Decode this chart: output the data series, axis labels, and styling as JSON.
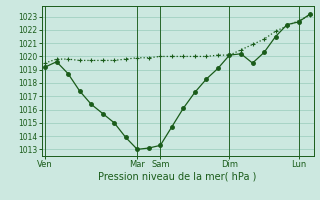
{
  "xlabel": "Pression niveau de la mer( hPa )",
  "background_color": "#cce8e0",
  "grid_color": "#99ccbb",
  "line_color": "#1a5c1a",
  "ylim": [
    1012.5,
    1023.8
  ],
  "yticks": [
    1013,
    1014,
    1015,
    1016,
    1017,
    1018,
    1019,
    1020,
    1021,
    1022,
    1023
  ],
  "day_labels": [
    "Ven",
    "Mar",
    "Sam",
    "Dim",
    "Lun"
  ],
  "day_positions": [
    0,
    8,
    10,
    16,
    22
  ],
  "xlim": [
    -0.3,
    23.3
  ],
  "series1_x": [
    0,
    1,
    2,
    3,
    4,
    5,
    6,
    7,
    8,
    9,
    10,
    11,
    12,
    13,
    14,
    15,
    16,
    17,
    18,
    19,
    20,
    21,
    22,
    23
  ],
  "series1_y": [
    1019.2,
    1019.6,
    1018.7,
    1017.4,
    1016.4,
    1015.7,
    1015.0,
    1013.9,
    1013.0,
    1013.1,
    1013.3,
    1014.7,
    1016.1,
    1017.3,
    1018.3,
    1019.1,
    1020.1,
    1020.2,
    1019.5,
    1020.3,
    1021.5,
    1022.4,
    1022.6,
    1023.2
  ],
  "series2_x": [
    0,
    1,
    2,
    3,
    4,
    5,
    6,
    7,
    8,
    9,
    10,
    11,
    12,
    13,
    14,
    15,
    16,
    17,
    18,
    19,
    20,
    21,
    22,
    23
  ],
  "series2_y": [
    1019.5,
    1019.8,
    1019.8,
    1019.7,
    1019.7,
    1019.7,
    1019.7,
    1019.8,
    1019.9,
    1019.9,
    1020.0,
    1020.0,
    1020.0,
    1020.0,
    1020.0,
    1020.1,
    1020.1,
    1020.5,
    1020.9,
    1021.3,
    1021.9,
    1022.3,
    1022.7,
    1023.1
  ]
}
